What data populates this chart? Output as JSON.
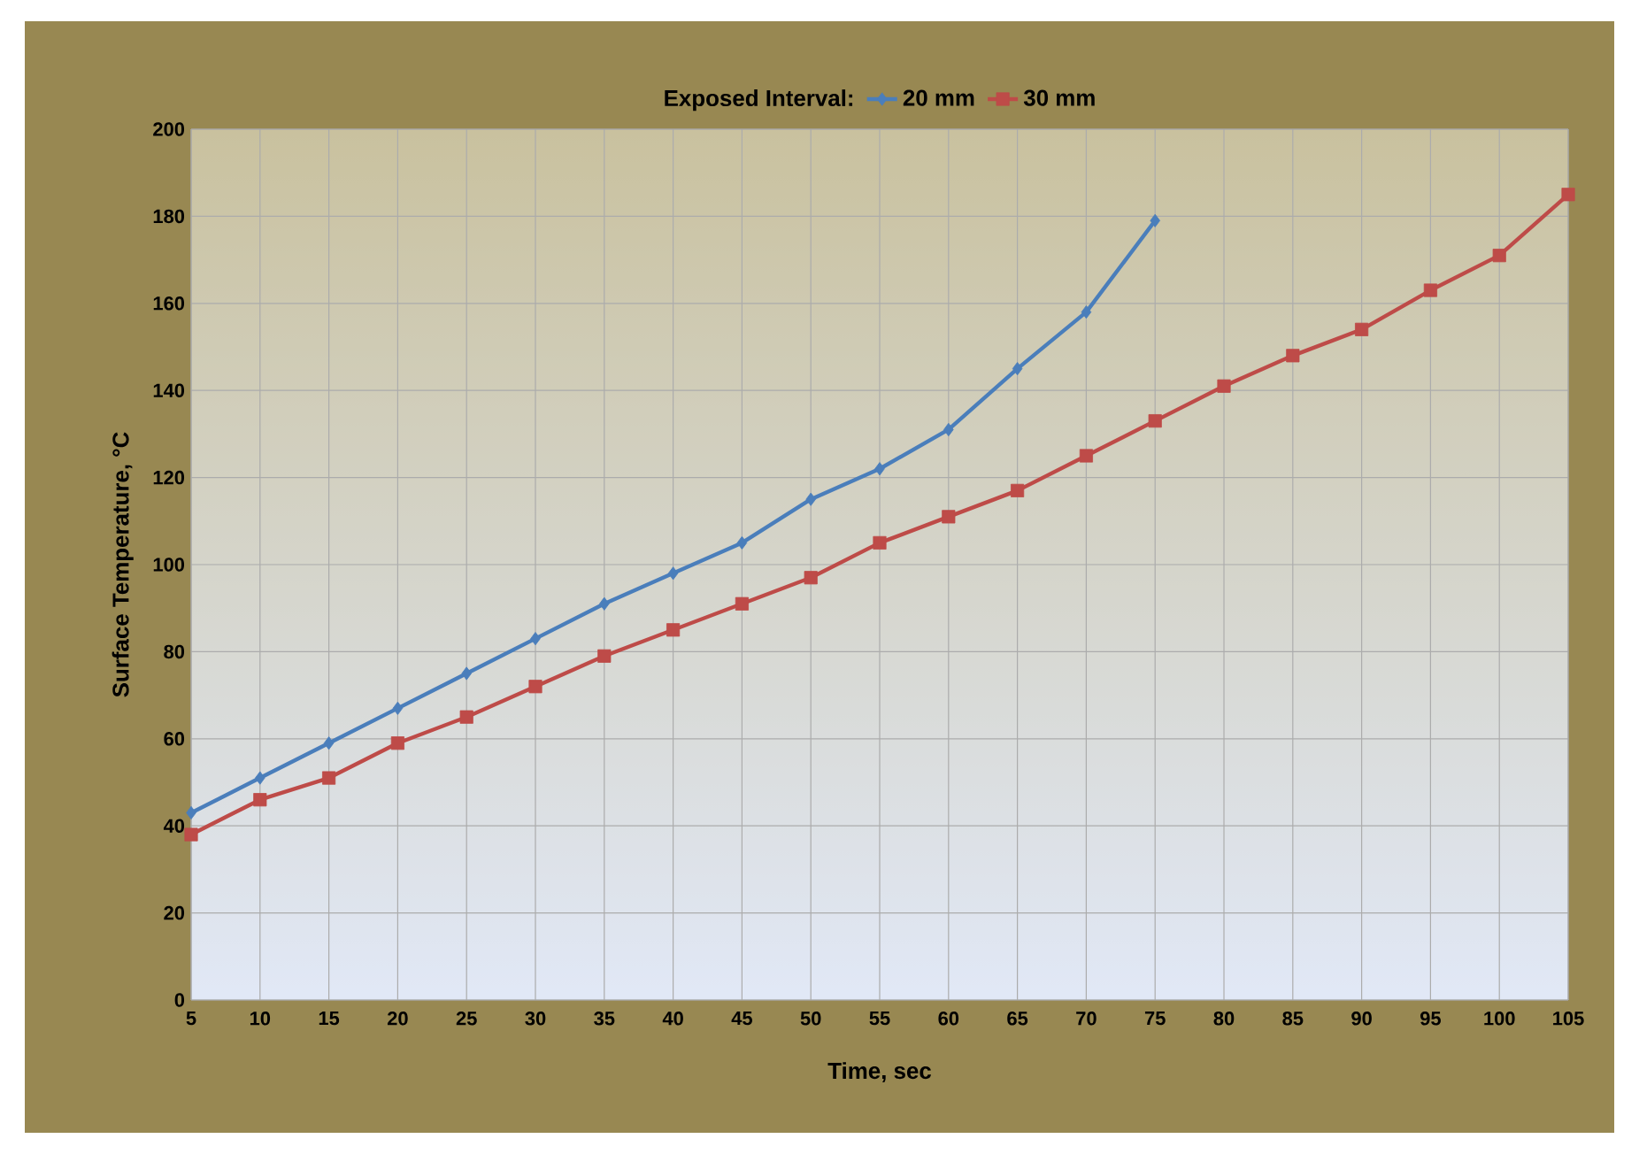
{
  "chart_data": {
    "type": "line",
    "xlabel": "Time, sec",
    "ylabel": "Surface Temperature, °C",
    "legend_title": "Exposed Interval:",
    "legend": "top",
    "grid": true,
    "xlim": [
      5,
      105
    ],
    "xticks": [
      5,
      10,
      15,
      20,
      25,
      30,
      35,
      40,
      45,
      50,
      55,
      60,
      65,
      70,
      75,
      80,
      85,
      90,
      95,
      100,
      105
    ],
    "ylim": [
      0,
      200
    ],
    "yticks": [
      0,
      20,
      40,
      60,
      80,
      100,
      120,
      140,
      160,
      180,
      200
    ],
    "series": [
      {
        "name": "20 mm",
        "color": "#4a7ebb",
        "marker": "diamond",
        "x": [
          5,
          10,
          15,
          20,
          25,
          30,
          35,
          40,
          45,
          50,
          55,
          60,
          65,
          70,
          75
        ],
        "values": [
          43,
          51,
          59,
          67,
          75,
          83,
          91,
          98,
          105,
          115,
          122,
          131,
          145,
          158,
          179
        ]
      },
      {
        "name": "30 mm",
        "color": "#be4b48",
        "marker": "square",
        "x": [
          5,
          10,
          15,
          20,
          25,
          30,
          35,
          40,
          45,
          50,
          55,
          60,
          65,
          70,
          75,
          80,
          85,
          90,
          95,
          100,
          105
        ],
        "values": [
          38,
          46,
          51,
          59,
          65,
          72,
          79,
          85,
          91,
          97,
          105,
          111,
          117,
          125,
          133,
          141,
          148,
          154,
          163,
          171,
          185
        ]
      }
    ]
  }
}
